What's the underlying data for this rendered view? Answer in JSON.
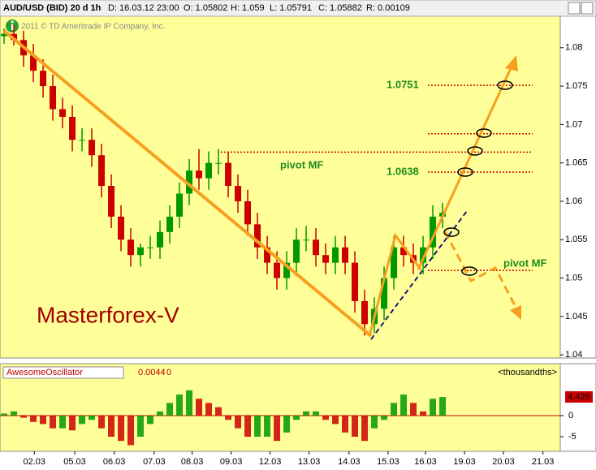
{
  "toolbar": {
    "symbol": "AUD/USD (BID) 20 d 1h",
    "date": "D: 16.03.12 23:00",
    "open": "O: 1.05802",
    "high": "H: 1.059",
    "low": "L: 1.05791",
    "close": "C: 1.05882",
    "range": "R: 0.00109"
  },
  "chart_data": {
    "type": "candlestick",
    "watermark": "2011 © TD Ameritrade IP Company, Inc.",
    "annotation": "Masterforex-V",
    "pivot_labels": [
      "pivot MF",
      "pivot MF"
    ],
    "open": [
      1.0815,
      1.0818,
      1.081,
      1.079,
      1.077,
      1.075,
      1.072,
      1.071,
      1.068,
      1.068,
      1.066,
      1.062,
      1.058,
      1.055,
      1.053,
      1.054,
      1.054,
      1.056,
      1.058,
      1.061,
      1.064,
      1.063,
      1.065,
      1.065,
      1.062,
      1.06,
      1.057,
      1.054,
      1.052,
      1.05,
      1.052,
      1.055,
      1.055,
      1.053,
      1.052,
      1.054,
      1.052,
      1.047,
      1.044,
      1.046,
      1.05,
      1.054,
      1.053,
      1.052,
      1.054,
      1.058
    ],
    "high": [
      1.0825,
      1.083,
      1.0822,
      1.0805,
      1.0785,
      1.0765,
      1.0735,
      1.0725,
      1.0695,
      1.0695,
      1.0675,
      1.0635,
      1.0595,
      1.0565,
      1.0545,
      1.0555,
      1.0575,
      1.0595,
      1.0625,
      1.0655,
      1.0668,
      1.0665,
      1.0668,
      1.0665,
      1.0635,
      1.0615,
      1.0585,
      1.0555,
      1.0535,
      1.0535,
      1.0565,
      1.0568,
      1.0565,
      1.0545,
      1.0555,
      1.0555,
      1.0535,
      1.0485,
      1.0475,
      1.0515,
      1.0555,
      1.0555,
      1.0545,
      1.0555,
      1.0595,
      1.0598
    ],
    "low": [
      1.0805,
      1.0803,
      1.0775,
      1.0755,
      1.0735,
      1.0705,
      1.0695,
      1.0665,
      1.0665,
      1.0645,
      1.0605,
      1.0565,
      1.0535,
      1.0515,
      1.0515,
      1.0525,
      1.0525,
      1.0545,
      1.0565,
      1.0595,
      1.0615,
      1.0615,
      1.0635,
      1.0605,
      1.0585,
      1.0555,
      1.0525,
      1.0505,
      1.0485,
      1.0485,
      1.0505,
      1.0535,
      1.0515,
      1.0505,
      1.0505,
      1.0505,
      1.0455,
      1.0425,
      1.0428,
      1.0445,
      1.0485,
      1.0515,
      1.0505,
      1.0505,
      1.0525,
      1.0565
    ],
    "close": [
      1.0818,
      1.081,
      1.079,
      1.077,
      1.075,
      1.072,
      1.071,
      1.068,
      1.068,
      1.066,
      1.062,
      1.058,
      1.055,
      1.053,
      1.054,
      1.054,
      1.056,
      1.058,
      1.061,
      1.064,
      1.063,
      1.065,
      1.065,
      1.062,
      1.06,
      1.057,
      1.054,
      1.052,
      1.05,
      1.052,
      1.055,
      1.055,
      1.053,
      1.052,
      1.054,
      1.052,
      1.047,
      1.044,
      1.046,
      1.05,
      1.054,
      1.053,
      1.052,
      1.054,
      1.058,
      1.0585
    ],
    "up_color": "#009900",
    "down_color": "#cc0000",
    "ylim": [
      1.0397,
      1.0841
    ],
    "yticks": [
      1.04,
      1.045,
      1.05,
      1.055,
      1.06,
      1.065,
      1.07,
      1.075,
      1.08
    ],
    "xlim": [
      -0.42,
      57.08
    ],
    "xticks": [
      {
        "value": 3.1,
        "label": "02.03"
      },
      {
        "value": 7.25,
        "label": "05.03"
      },
      {
        "value": 11.3,
        "label": "06.03"
      },
      {
        "value": 15.4,
        "label": "07.03"
      },
      {
        "value": 19.3,
        "label": "08.03"
      },
      {
        "value": 23.3,
        "label": "09.03"
      },
      {
        "value": 27.3,
        "label": "12.03"
      },
      {
        "value": 31.3,
        "label": "13.03"
      },
      {
        "value": 35.4,
        "label": "14.03"
      },
      {
        "value": 39.4,
        "label": "15.03"
      },
      {
        "value": 43.25,
        "label": "16.03"
      },
      {
        "value": 47.25,
        "label": "19.03"
      },
      {
        "value": 51.25,
        "label": "20.03"
      },
      {
        "value": 55.3,
        "label": "21.03"
      }
    ],
    "levels": [
      1.0751,
      1.0688,
      1.0664,
      1.0638,
      1.051
    ],
    "level_labels": [
      "1.0751",
      null,
      null,
      "1.0638",
      null
    ],
    "level_color": "#cc0000",
    "oscillator": {
      "name": "AwesomeOscillator",
      "header_values": [
        "0.0044",
        "0"
      ],
      "units": "<thousandths>",
      "values": [
        0.5,
        1,
        -0.5,
        -1.5,
        -2,
        -3,
        -3,
        -3.5,
        -2,
        -1,
        -3,
        -5,
        -6,
        -7,
        -5,
        -2,
        1,
        3,
        5,
        6,
        4,
        3,
        2,
        -1,
        -3,
        -5,
        -5,
        -5,
        -6,
        -4,
        -1,
        1,
        1,
        -1,
        -2,
        -4,
        -5,
        -6,
        -3,
        -1,
        3,
        5,
        3,
        1,
        4,
        4.4
      ],
      "last_value": 4.426,
      "ylim": [
        -8.27,
        8.46
      ],
      "yticks": [
        0,
        -5
      ]
    }
  }
}
